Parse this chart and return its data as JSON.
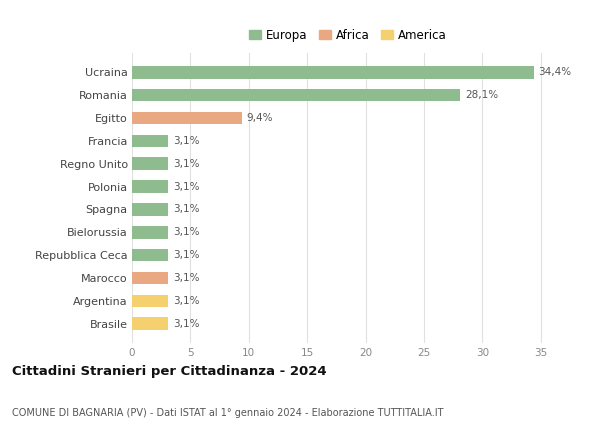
{
  "countries": [
    "Ucraina",
    "Romania",
    "Egitto",
    "Francia",
    "Regno Unito",
    "Polonia",
    "Spagna",
    "Bielorussia",
    "Repubblica Ceca",
    "Marocco",
    "Argentina",
    "Brasile"
  ],
  "values": [
    34.4,
    28.1,
    9.4,
    3.1,
    3.1,
    3.1,
    3.1,
    3.1,
    3.1,
    3.1,
    3.1,
    3.1
  ],
  "labels": [
    "34,4%",
    "28,1%",
    "9,4%",
    "3,1%",
    "3,1%",
    "3,1%",
    "3,1%",
    "3,1%",
    "3,1%",
    "3,1%",
    "3,1%",
    "3,1%"
  ],
  "continents": [
    "Europa",
    "Europa",
    "Africa",
    "Europa",
    "Europa",
    "Europa",
    "Europa",
    "Europa",
    "Europa",
    "Africa",
    "America",
    "America"
  ],
  "colors": {
    "Europa": "#8fbc8f",
    "Africa": "#e9a882",
    "America": "#f5d06e"
  },
  "legend_labels": [
    "Europa",
    "Africa",
    "America"
  ],
  "title": "Cittadini Stranieri per Cittadinanza - 2024",
  "subtitle": "COMUNE DI BAGNARIA (PV) - Dati ISTAT al 1° gennaio 2024 - Elaborazione TUTTITALIA.IT",
  "xlim": [
    0,
    37
  ],
  "xticks": [
    0,
    5,
    10,
    15,
    20,
    25,
    30,
    35
  ],
  "bg_color": "#ffffff",
  "grid_color": "#e0e0e0",
  "bar_height": 0.55
}
